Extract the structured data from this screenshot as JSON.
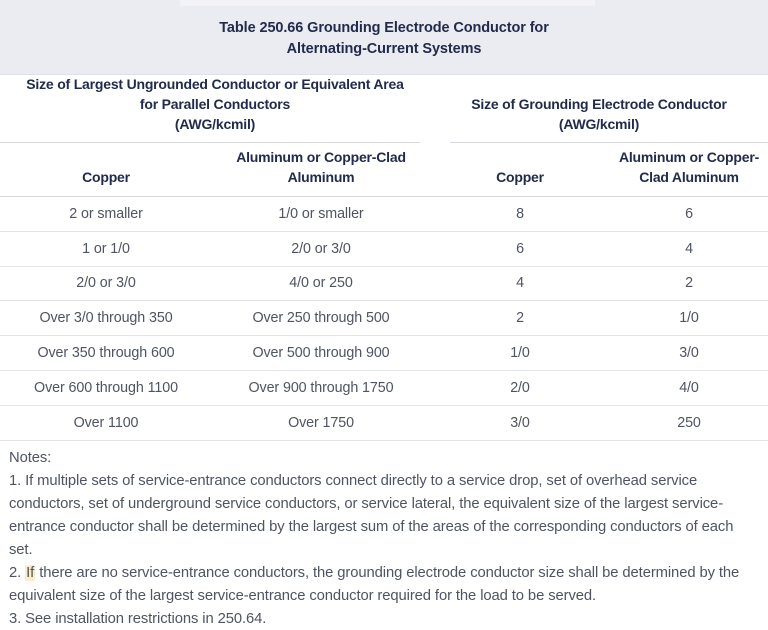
{
  "title": "Table 250.66 Grounding Electrode Conductor for\nAlternating-Current Systems",
  "table": {
    "group_headers": [
      {
        "label": "Size of Largest Ungrounded Conductor or Equivalent Area\nfor Parallel Conductors\n(AWG/kcmil)"
      },
      {
        "label": "Size of Grounding Electrode Conductor\n(AWG/kcmil)"
      }
    ],
    "column_headers": [
      "Copper",
      "Aluminum or Copper-Clad\nAluminum",
      "Copper",
      "Aluminum or Copper-\nClad Aluminum"
    ],
    "rows": [
      [
        "2 or smaller",
        "1/0 or smaller",
        "8",
        "6"
      ],
      [
        "1 or 1/0",
        "2/0 or 3/0",
        "6",
        "4"
      ],
      [
        "2/0 or 3/0",
        "4/0 or 250",
        "4",
        "2"
      ],
      [
        "Over 3/0 through 350",
        "Over 250 through 500",
        "2",
        "1/0"
      ],
      [
        "Over 350 through 600",
        "Over 500 through 900",
        "1/0",
        "3/0"
      ],
      [
        "Over 600 through 1100",
        "Over 900 through 1750",
        "2/0",
        "4/0"
      ],
      [
        "Over 1100",
        "Over 1750",
        "3/0",
        "250"
      ]
    ]
  },
  "notes": {
    "heading": "Notes:",
    "note1": "1. If multiple sets of service-entrance conductors connect directly to a service drop, set of overhead service conductors, set of underground service conductors, or service lateral, the equivalent size of the largest service-entrance conductor shall be determined by the largest sum of the areas of the corresponding conductors of each set.",
    "note2_prefix": "2. ",
    "note2_highlight": "If",
    "note2_rest": " there are no service-entrance conductors, the grounding electrode conductor size shall be determined by the equivalent size of the largest service-entrance conductor required for the load to be served.",
    "note3": "3. See installation restrictions in 250.64."
  },
  "colors": {
    "header_navy": "#222b4c",
    "body_gray": "#4e5461",
    "band_background": "#ebecf1",
    "divider_header": "#d6d8dd",
    "divider_row": "#e3e4e8",
    "highlight": "#fcecc8"
  }
}
